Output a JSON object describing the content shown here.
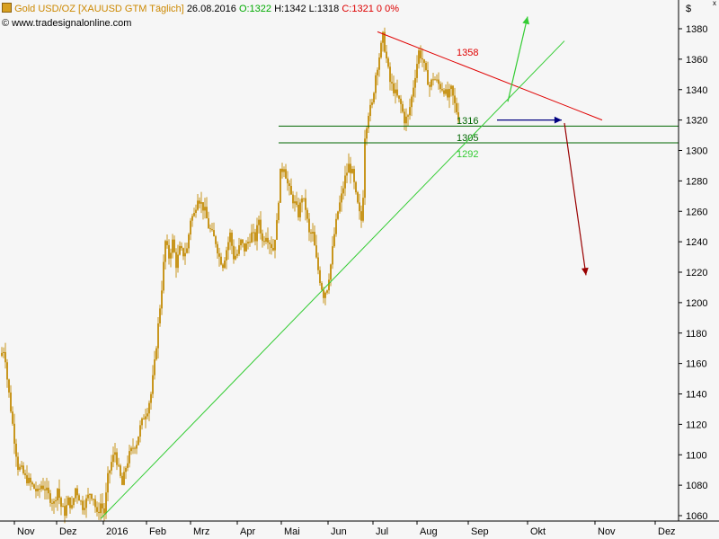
{
  "header": {
    "symbol": "Gold USD/OZ [XAUUSD GTM",
    "period": "Täglich]",
    "date": "26.08.2016",
    "open": "O:1322",
    "high": "H:1342",
    "low": "L:1318",
    "close": "C:1321",
    "change": "0",
    "change_pct": "0%",
    "website": "www.tradesignalonline.com"
  },
  "colors": {
    "candle": "#c8961e",
    "resistance": "#e00000",
    "support_trend": "#33cc33",
    "levels": "#006600",
    "arrow_up": "#33cc33",
    "arrow_right": "#000080",
    "arrow_down": "#990000",
    "header_label": "#cc8800",
    "header_ohlc": "#00aa00",
    "header_close": "#dd0000"
  },
  "chart_data": {
    "type": "candlestick",
    "y_axis_label": "$",
    "ylim": [
      1055,
      1395
    ],
    "y_ticks": [
      1060,
      1080,
      1100,
      1120,
      1140,
      1160,
      1180,
      1200,
      1220,
      1240,
      1260,
      1280,
      1300,
      1320,
      1340,
      1360,
      1380
    ],
    "x_ticks": [
      "Nov",
      "Dez",
      "2016",
      "Feb",
      "Mrz",
      "Apr",
      "Mai",
      "Jun",
      "Jul",
      "Aug",
      "Sep",
      "Okt",
      "Nov",
      "Dez"
    ],
    "price_path": [
      [
        0,
        1165
      ],
      [
        5,
        1170
      ],
      [
        8,
        1150
      ],
      [
        12,
        1130
      ],
      [
        16,
        1110
      ],
      [
        20,
        1092
      ],
      [
        24,
        1090
      ],
      [
        28,
        1085
      ],
      [
        33,
        1082
      ],
      [
        38,
        1078
      ],
      [
        42,
        1075
      ],
      [
        46,
        1080
      ],
      [
        50,
        1078
      ],
      [
        55,
        1072
      ],
      [
        60,
        1068
      ],
      [
        64,
        1078
      ],
      [
        68,
        1066
      ],
      [
        72,
        1062
      ],
      [
        76,
        1070
      ],
      [
        80,
        1065
      ],
      [
        84,
        1078
      ],
      [
        88,
        1072
      ],
      [
        92,
        1066
      ],
      [
        96,
        1070
      ],
      [
        100,
        1075
      ],
      [
        104,
        1072
      ],
      [
        108,
        1060
      ],
      [
        112,
        1068
      ],
      [
        116,
        1062
      ],
      [
        120,
        1085
      ],
      [
        124,
        1095
      ],
      [
        128,
        1102
      ],
      [
        132,
        1090
      ],
      [
        136,
        1080
      ],
      [
        140,
        1092
      ],
      [
        144,
        1100
      ],
      [
        148,
        1105
      ],
      [
        152,
        1108
      ],
      [
        156,
        1118
      ],
      [
        160,
        1125
      ],
      [
        164,
        1130
      ],
      [
        168,
        1140
      ],
      [
        172,
        1160
      ],
      [
        176,
        1185
      ],
      [
        180,
        1210
      ],
      [
        184,
        1240
      ],
      [
        188,
        1230
      ],
      [
        192,
        1240
      ],
      [
        196,
        1225
      ],
      [
        200,
        1235
      ],
      [
        204,
        1232
      ],
      [
        208,
        1235
      ],
      [
        212,
        1255
      ],
      [
        216,
        1258
      ],
      [
        220,
        1270
      ],
      [
        224,
        1265
      ],
      [
        228,
        1260
      ],
      [
        232,
        1250
      ],
      [
        236,
        1245
      ],
      [
        240,
        1240
      ],
      [
        244,
        1230
      ],
      [
        248,
        1225
      ],
      [
        252,
        1235
      ],
      [
        256,
        1245
      ],
      [
        260,
        1230
      ],
      [
        264,
        1232
      ],
      [
        268,
        1240
      ],
      [
        272,
        1235
      ],
      [
        276,
        1240
      ],
      [
        280,
        1245
      ],
      [
        284,
        1242
      ],
      [
        288,
        1255
      ],
      [
        292,
        1240
      ],
      [
        296,
        1245
      ],
      [
        300,
        1240
      ],
      [
        304,
        1235
      ],
      [
        308,
        1252
      ],
      [
        312,
        1285
      ],
      [
        316,
        1290
      ],
      [
        320,
        1278
      ],
      [
        324,
        1270
      ],
      [
        328,
        1265
      ],
      [
        332,
        1258
      ],
      [
        336,
        1270
      ],
      [
        340,
        1262
      ],
      [
        344,
        1245
      ],
      [
        348,
        1245
      ],
      [
        352,
        1228
      ],
      [
        356,
        1215
      ],
      [
        360,
        1205
      ],
      [
        364,
        1210
      ],
      [
        368,
        1225
      ],
      [
        372,
        1245
      ],
      [
        376,
        1260
      ],
      [
        380,
        1270
      ],
      [
        384,
        1282
      ],
      [
        388,
        1290
      ],
      [
        392,
        1285
      ],
      [
        396,
        1270
      ],
      [
        400,
        1258
      ],
      [
        403,
        1252
      ],
      [
        406,
        1310
      ],
      [
        410,
        1325
      ],
      [
        414,
        1330
      ],
      [
        418,
        1350
      ],
      [
        422,
        1362
      ],
      [
        426,
        1375
      ],
      [
        430,
        1360
      ],
      [
        434,
        1345
      ],
      [
        438,
        1340
      ],
      [
        442,
        1335
      ],
      [
        446,
        1330
      ],
      [
        450,
        1320
      ],
      [
        454,
        1322
      ],
      [
        458,
        1335
      ],
      [
        462,
        1350
      ],
      [
        466,
        1365
      ],
      [
        470,
        1360
      ],
      [
        474,
        1350
      ],
      [
        478,
        1342
      ],
      [
        482,
        1348
      ],
      [
        486,
        1345
      ],
      [
        490,
        1342
      ],
      [
        494,
        1340
      ],
      [
        498,
        1335
      ],
      [
        502,
        1340
      ],
      [
        506,
        1330
      ],
      [
        510,
        1322
      ]
    ],
    "trendlines": [
      {
        "role": "resistance",
        "from": [
          420,
          1378
        ],
        "to": [
          670,
          1320
        ]
      },
      {
        "role": "support",
        "from": [
          112,
          1058
        ],
        "to": [
          628,
          1372
        ]
      }
    ],
    "levels": [
      {
        "value": 1316,
        "label": "1316"
      },
      {
        "value": 1305,
        "label": "1305"
      }
    ],
    "annotations": [
      {
        "label": "1358",
        "value": 1358
      },
      {
        "label": "1292",
        "value": 1292
      }
    ],
    "arrows": [
      {
        "role": "up",
        "from": [
          565,
          1332
        ],
        "to": [
          587,
          1388
        ]
      },
      {
        "role": "right",
        "from": [
          553,
          1320
        ],
        "to": [
          625,
          1320
        ]
      },
      {
        "role": "down",
        "from": [
          628,
          1318
        ],
        "to": [
          652,
          1218
        ]
      }
    ]
  }
}
